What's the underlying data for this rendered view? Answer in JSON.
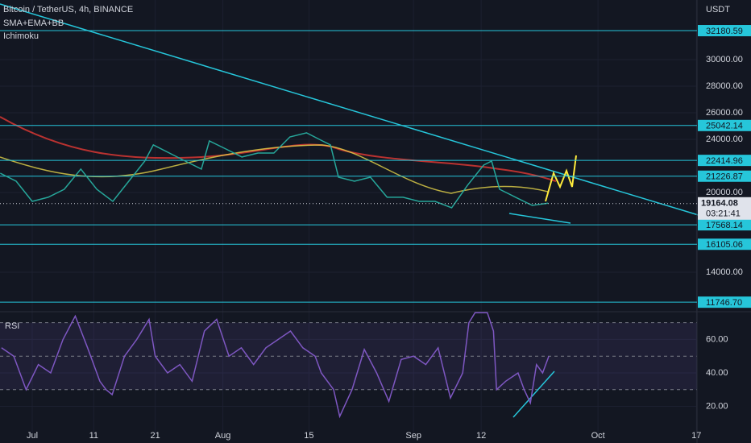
{
  "header": {
    "symbol": "Bitcoin / TetherUS, 4h, BINANCE",
    "indicators": [
      "SMA+EMA+BB",
      "Ichimoku"
    ],
    "currency": "USDT"
  },
  "chart_data": [
    {
      "type": "line",
      "color": "#26a69a",
      "x": [
        -5.2,
        -2.6,
        0,
        2.6,
        5.2,
        7.9,
        10.5,
        13.1,
        15.7,
        18.3,
        19.7,
        22.3,
        24.9,
        27.5,
        28.8,
        31.5,
        34.1,
        36.7,
        39.3,
        41.9,
        44.6,
        47.2,
        48.5,
        49.8,
        52.4,
        55.0,
        57.7,
        60.3,
        62.9,
        65.5,
        68.2,
        70.8,
        73.4,
        74.7,
        76.0,
        78.6,
        81.3,
        83.9
      ],
      "values": [
        21450,
        20850,
        19330,
        19640,
        20240,
        21760,
        20240,
        19330,
        20850,
        22360,
        23580,
        22970,
        22360,
        21760,
        23880,
        23270,
        22670,
        22970,
        22970,
        24180,
        24490,
        23880,
        23580,
        21150,
        20850,
        21150,
        19640,
        19640,
        19330,
        19330,
        18850,
        20550,
        22060,
        22360,
        20240,
        19640,
        19030,
        19200
      ],
      "xlim": [
        -5.24,
        108.1
      ],
      "xticks": [
        {
          "value": 0,
          "label": "Jul"
        },
        {
          "value": 10,
          "label": "11"
        },
        {
          "value": 20,
          "label": "21"
        },
        {
          "value": 31,
          "label": "Aug"
        },
        {
          "value": 45,
          "label": "15"
        },
        {
          "value": 62,
          "label": "Sep"
        },
        {
          "value": 73,
          "label": "12"
        },
        {
          "value": 92,
          "label": "Oct"
        },
        {
          "value": 108,
          "label": "17"
        }
      ],
      "ylim": [
        11150,
        34485
      ],
      "yticks": [
        {
          "value": 14000,
          "label": "14000.00"
        },
        {
          "value": 20000,
          "label": "20000.00"
        },
        {
          "value": 24000,
          "label": "24000.00"
        },
        {
          "value": 26000,
          "label": "26000.00"
        },
        {
          "value": 28000,
          "label": "28000.00"
        },
        {
          "value": 30000,
          "label": "30000.00"
        }
      ],
      "levels": [
        32180.59,
        25042.14,
        22414.96,
        21226.87,
        17568.14,
        16105.06,
        {
          "value": 11746.7,
          "label": "11746.70"
        }
      ],
      "last_price": 19164.08,
      "countdown": "03:21:41"
    },
    {
      "type": "line",
      "title": "RSI",
      "color": "#7e57c2",
      "x": [
        -5,
        -3,
        -1,
        1,
        3,
        5,
        7,
        9,
        11,
        12,
        13,
        15,
        17,
        19,
        20,
        22,
        24,
        26,
        28,
        30,
        32,
        34,
        36,
        38,
        40,
        42,
        44,
        46,
        47,
        49,
        50,
        52,
        54,
        56,
        58,
        60,
        62,
        64,
        66,
        68,
        70,
        71,
        72,
        74,
        75,
        75.5,
        77,
        79,
        80,
        81,
        82,
        83,
        84
      ],
      "values": [
        55,
        50,
        30,
        45,
        40,
        60,
        74,
        55,
        35,
        30,
        27,
        50,
        60,
        72,
        50,
        40,
        45,
        35,
        65,
        72,
        50,
        55,
        45,
        55,
        60,
        65,
        55,
        50,
        40,
        30,
        14,
        30,
        54,
        40,
        23,
        48,
        50,
        45,
        55,
        25,
        40,
        70,
        76,
        76,
        65,
        30,
        35,
        40,
        30,
        22,
        45,
        40,
        50
      ],
      "ylim": [
        2.9,
        76.1
      ],
      "yticks": [
        {
          "value": 20,
          "label": "20.00"
        },
        {
          "value": 40,
          "label": "40.00"
        },
        {
          "value": 60,
          "label": "60.00"
        }
      ],
      "bands": [
        30,
        50,
        70
      ]
    }
  ]
}
